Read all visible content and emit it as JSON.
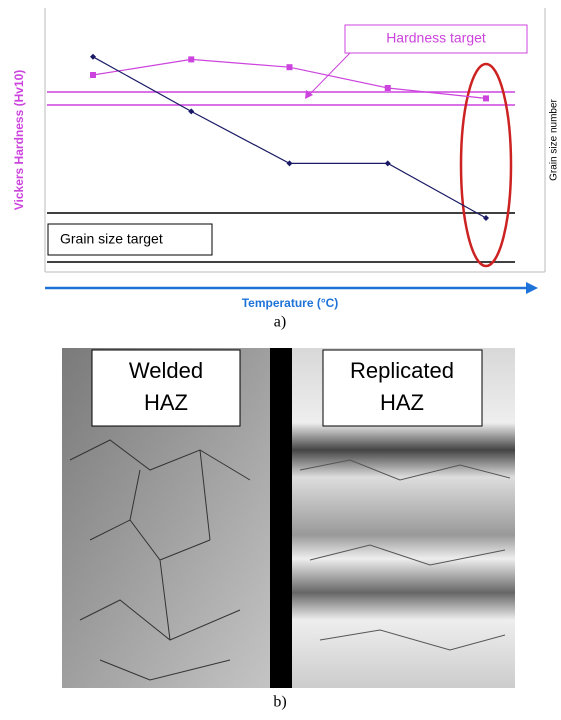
{
  "chart_data": {
    "type": "line",
    "y_label": "Vickers Hardness (Hv10)",
    "y2_label": "Grain size number",
    "x_label": "Temperature (°C)",
    "categories": [
      null,
      null,
      null,
      null,
      null
    ],
    "ylim": [
      0,
      100
    ],
    "y2lim": [
      0,
      100
    ],
    "series": [
      {
        "color": "#cc44dd",
        "values": [
          75,
          81,
          78,
          70,
          66
        ]
      },
      {
        "color": "#1a1a66",
        "axis": "y2",
        "values": [
          82,
          61,
          41,
          41,
          20
        ]
      }
    ],
    "annotations": [
      "Hardness target",
      "Grain size target"
    ]
  },
  "figure": {
    "label_a": "a)",
    "label_b": "b)",
    "panels": [
      {
        "caption_lines": [
          "Welded",
          "HAZ"
        ]
      },
      {
        "caption_lines": [
          "Replicated",
          "HAZ"
        ]
      }
    ]
  }
}
